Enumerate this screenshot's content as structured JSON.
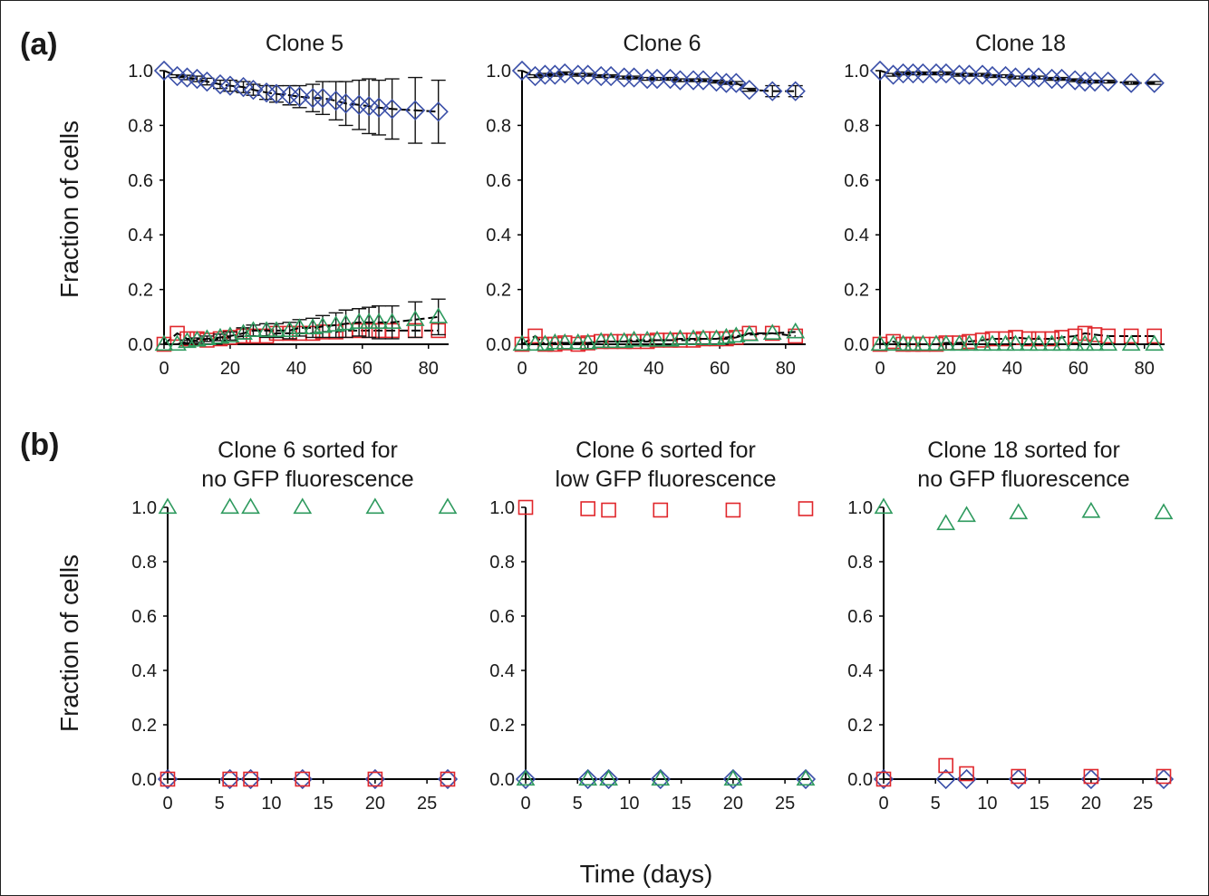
{
  "figure": {
    "ylabel": "Fraction of cells",
    "xlabel": "Time (days)",
    "panel_a_label": "(a)",
    "panel_b_label": "(b)",
    "series_colors": {
      "diamond": "#3a4fa8",
      "square": "#e0262b",
      "triangle": "#2e9a5e",
      "mean_line": "#000000"
    }
  },
  "chart_data": [
    {
      "type": "scatter",
      "panel": "a",
      "title": "Clone 5",
      "xlim": [
        0,
        85
      ],
      "ylim": [
        0,
        1
      ],
      "xticks": [
        0,
        20,
        40,
        60,
        80
      ],
      "yticks": [
        "0.0",
        "0.2",
        "0.4",
        "0.6",
        "0.8",
        "1.0"
      ],
      "series": [
        {
          "marker": "diamond",
          "x": [
            0,
            4,
            7,
            10,
            13,
            17,
            20,
            24,
            27,
            31,
            34,
            38,
            41,
            45,
            48,
            52,
            55,
            59,
            62,
            65,
            69,
            76,
            83
          ],
          "y": [
            1.0,
            0.98,
            0.975,
            0.97,
            0.96,
            0.95,
            0.945,
            0.94,
            0.93,
            0.92,
            0.915,
            0.91,
            0.905,
            0.9,
            0.9,
            0.89,
            0.88,
            0.875,
            0.87,
            0.865,
            0.86,
            0.855,
            0.85
          ],
          "err": [
            0,
            0.005,
            0.008,
            0.01,
            0.012,
            0.015,
            0.02,
            0.02,
            0.02,
            0.025,
            0.03,
            0.035,
            0.04,
            0.05,
            0.06,
            0.07,
            0.08,
            0.09,
            0.1,
            0.1,
            0.11,
            0.12,
            0.115
          ]
        },
        {
          "marker": "square",
          "x": [
            0,
            4,
            7,
            10,
            13,
            17,
            20,
            24,
            27,
            31,
            34,
            38,
            41,
            45,
            48,
            52,
            55,
            59,
            62,
            65,
            69,
            76,
            83
          ],
          "y": [
            0.0,
            0.04,
            0.02,
            0.02,
            0.015,
            0.02,
            0.025,
            0.03,
            0.03,
            0.03,
            0.04,
            0.04,
            0.04,
            0.04,
            0.045,
            0.045,
            0.05,
            0.05,
            0.05,
            0.05,
            0.05,
            0.05,
            0.05
          ]
        },
        {
          "marker": "triangle",
          "x": [
            0,
            4,
            7,
            10,
            13,
            17,
            20,
            24,
            27,
            31,
            34,
            38,
            41,
            45,
            48,
            52,
            55,
            59,
            62,
            65,
            69,
            76,
            83
          ],
          "y": [
            0.0,
            0.0,
            0.01,
            0.015,
            0.02,
            0.025,
            0.03,
            0.04,
            0.05,
            0.05,
            0.05,
            0.05,
            0.06,
            0.06,
            0.065,
            0.07,
            0.075,
            0.08,
            0.08,
            0.08,
            0.08,
            0.09,
            0.1
          ],
          "err": [
            0,
            0,
            0.005,
            0.008,
            0.01,
            0.012,
            0.015,
            0.02,
            0.02,
            0.025,
            0.025,
            0.03,
            0.03,
            0.035,
            0.04,
            0.045,
            0.05,
            0.05,
            0.055,
            0.06,
            0.06,
            0.065,
            0.065
          ]
        }
      ]
    },
    {
      "type": "scatter",
      "panel": "a",
      "title": "Clone 6",
      "xlim": [
        0,
        85
      ],
      "ylim": [
        0,
        1
      ],
      "xticks": [
        0,
        20,
        40,
        60,
        80
      ],
      "yticks": [
        "0.0",
        "0.2",
        "0.4",
        "0.6",
        "0.8",
        "1.0"
      ],
      "series": [
        {
          "marker": "diamond",
          "x": [
            0,
            4,
            7,
            10,
            13,
            17,
            20,
            24,
            27,
            31,
            34,
            38,
            41,
            45,
            48,
            52,
            55,
            59,
            62,
            65,
            69,
            76,
            83
          ],
          "y": [
            1.0,
            0.98,
            0.985,
            0.985,
            0.99,
            0.985,
            0.985,
            0.98,
            0.98,
            0.975,
            0.975,
            0.97,
            0.97,
            0.97,
            0.965,
            0.965,
            0.965,
            0.96,
            0.955,
            0.955,
            0.93,
            0.925,
            0.925
          ],
          "err": [
            0,
            0.005,
            0.005,
            0.005,
            0.005,
            0.005,
            0.005,
            0.005,
            0.005,
            0.005,
            0.005,
            0.005,
            0.005,
            0.005,
            0.005,
            0.005,
            0.005,
            0.005,
            0.005,
            0.005,
            0.005,
            0.02,
            0.02
          ]
        },
        {
          "marker": "square",
          "x": [
            0,
            4,
            7,
            10,
            13,
            17,
            20,
            24,
            27,
            31,
            34,
            38,
            41,
            45,
            48,
            52,
            55,
            59,
            62,
            65,
            69,
            76,
            83
          ],
          "y": [
            0.0,
            0.03,
            0.0,
            0.0,
            0.005,
            0.0,
            0.005,
            0.01,
            0.01,
            0.01,
            0.01,
            0.01,
            0.015,
            0.015,
            0.015,
            0.015,
            0.02,
            0.02,
            0.02,
            0.025,
            0.04,
            0.04,
            0.03
          ]
        },
        {
          "marker": "triangle",
          "x": [
            0,
            4,
            7,
            10,
            13,
            17,
            20,
            24,
            27,
            31,
            34,
            38,
            41,
            45,
            48,
            52,
            55,
            59,
            62,
            65,
            69,
            76,
            83
          ],
          "y": [
            0.0,
            0.0,
            0.0,
            0.005,
            0.005,
            0.005,
            0.005,
            0.01,
            0.01,
            0.01,
            0.015,
            0.015,
            0.015,
            0.015,
            0.02,
            0.02,
            0.02,
            0.02,
            0.025,
            0.03,
            0.035,
            0.04,
            0.045
          ]
        }
      ]
    },
    {
      "type": "scatter",
      "panel": "a",
      "title": "Clone 18",
      "xlim": [
        0,
        85
      ],
      "ylim": [
        0,
        1
      ],
      "xticks": [
        0,
        20,
        40,
        60,
        80
      ],
      "yticks": [
        "0.0",
        "0.2",
        "0.4",
        "0.6",
        "0.8",
        "1.0"
      ],
      "series": [
        {
          "marker": "diamond",
          "x": [
            0,
            4,
            7,
            10,
            13,
            17,
            20,
            24,
            27,
            31,
            34,
            38,
            41,
            45,
            48,
            52,
            55,
            59,
            62,
            65,
            69,
            76,
            83
          ],
          "y": [
            1.0,
            0.985,
            0.99,
            0.99,
            0.99,
            0.99,
            0.99,
            0.985,
            0.985,
            0.985,
            0.98,
            0.98,
            0.975,
            0.975,
            0.975,
            0.97,
            0.97,
            0.965,
            0.96,
            0.96,
            0.96,
            0.955,
            0.955
          ],
          "err": [
            0,
            0.005,
            0.005,
            0.005,
            0.005,
            0.005,
            0.005,
            0.005,
            0.005,
            0.005,
            0.005,
            0.005,
            0.005,
            0.005,
            0.005,
            0.005,
            0.005,
            0.005,
            0.005,
            0.005,
            0.005,
            0.005,
            0.005
          ]
        },
        {
          "marker": "square",
          "x": [
            0,
            4,
            7,
            10,
            13,
            17,
            20,
            24,
            27,
            31,
            34,
            38,
            41,
            45,
            48,
            52,
            55,
            59,
            62,
            65,
            69,
            76,
            83
          ],
          "y": [
            0.0,
            0.01,
            0.0,
            0.0,
            0.0,
            0.0,
            0.005,
            0.005,
            0.01,
            0.015,
            0.02,
            0.02,
            0.025,
            0.02,
            0.02,
            0.02,
            0.025,
            0.03,
            0.04,
            0.035,
            0.03,
            0.03,
            0.03
          ]
        },
        {
          "marker": "triangle",
          "x": [
            0,
            4,
            7,
            10,
            13,
            17,
            20,
            24,
            27,
            31,
            34,
            38,
            41,
            45,
            48,
            52,
            55,
            59,
            62,
            65,
            69,
            76,
            83
          ],
          "y": [
            0.0,
            0.0,
            0.0,
            0.0,
            0.0,
            0.0,
            0.0,
            0.0,
            0.0,
            0.0,
            0.0,
            0.0,
            0.0,
            0.0,
            0.0,
            0.0,
            0.0,
            0.0,
            0.0,
            0.0,
            0.0,
            0.0,
            0.0
          ]
        }
      ]
    },
    {
      "type": "scatter",
      "panel": "b",
      "title": [
        "Clone 6 sorted for",
        "no GFP fluorescence"
      ],
      "xlim": [
        0,
        27
      ],
      "ylim": [
        0,
        1
      ],
      "xticks": [
        0,
        5,
        10,
        15,
        20,
        25
      ],
      "yticks": [
        "0.0",
        "0.2",
        "0.4",
        "0.6",
        "0.8",
        "1.0"
      ],
      "series": [
        {
          "marker": "diamond",
          "x": [
            0,
            6,
            8,
            13,
            20,
            27
          ],
          "y": [
            0,
            0,
            0,
            0,
            0,
            0
          ]
        },
        {
          "marker": "square",
          "x": [
            0,
            6,
            8,
            13,
            20,
            27
          ],
          "y": [
            0,
            0,
            0,
            0,
            0,
            0
          ]
        },
        {
          "marker": "triangle",
          "x": [
            0,
            6,
            8,
            13,
            20,
            27
          ],
          "y": [
            1.0,
            1.0,
            1.0,
            1.0,
            1.0,
            1.0
          ]
        }
      ]
    },
    {
      "type": "scatter",
      "panel": "b",
      "title": [
        "Clone 6 sorted for",
        "low GFP fluorescence"
      ],
      "xlim": [
        0,
        27
      ],
      "ylim": [
        0,
        1
      ],
      "xticks": [
        0,
        5,
        10,
        15,
        20,
        25
      ],
      "yticks": [
        "0.0",
        "0.2",
        "0.4",
        "0.6",
        "0.8",
        "1.0"
      ],
      "series": [
        {
          "marker": "diamond",
          "x": [
            0,
            6,
            8,
            13,
            20,
            27
          ],
          "y": [
            0,
            0,
            0,
            0,
            0,
            0
          ]
        },
        {
          "marker": "square",
          "x": [
            0,
            6,
            8,
            13,
            20,
            27
          ],
          "y": [
            1.0,
            0.995,
            0.99,
            0.99,
            0.99,
            0.995
          ]
        },
        {
          "marker": "triangle",
          "x": [
            0,
            6,
            8,
            13,
            20,
            27
          ],
          "y": [
            0,
            0,
            0,
            0,
            0,
            0
          ]
        }
      ]
    },
    {
      "type": "scatter",
      "panel": "b",
      "title": [
        "Clone 18 sorted for",
        "no GFP fluorescence"
      ],
      "xlim": [
        0,
        27
      ],
      "ylim": [
        0,
        1
      ],
      "xticks": [
        0,
        5,
        10,
        15,
        20,
        25
      ],
      "yticks": [
        "0.0",
        "0.2",
        "0.4",
        "0.6",
        "0.8",
        "1.0"
      ],
      "series": [
        {
          "marker": "diamond",
          "x": [
            0,
            6,
            8,
            13,
            20,
            27
          ],
          "y": [
            0,
            0,
            0,
            0,
            0,
            0
          ]
        },
        {
          "marker": "square",
          "x": [
            0,
            6,
            8,
            13,
            20,
            27
          ],
          "y": [
            0,
            0.05,
            0.02,
            0.01,
            0.01,
            0.01
          ]
        },
        {
          "marker": "triangle",
          "x": [
            0,
            6,
            8,
            13,
            20,
            27
          ],
          "y": [
            1.0,
            0.94,
            0.97,
            0.98,
            0.985,
            0.98
          ]
        }
      ]
    }
  ]
}
